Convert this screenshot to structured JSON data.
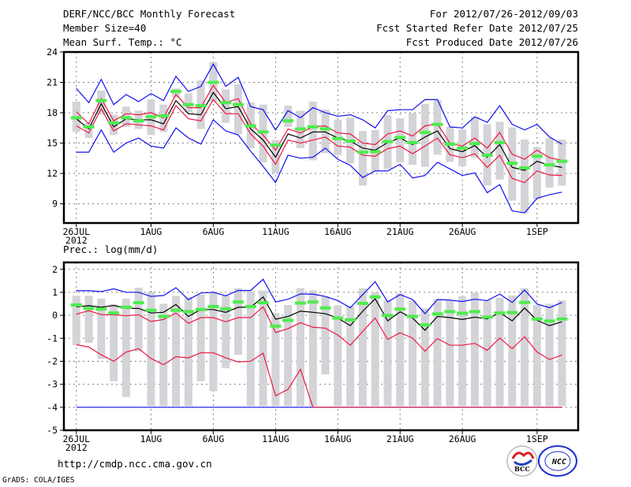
{
  "header": {
    "title": "DERF/NCC/BCC Monthly Forecast",
    "member_size": "Member Size=40",
    "variable": "Mean Surf. Temp.: °C",
    "period": "For 2012/07/26-2012/09/03",
    "fcst_started": "Fcst Started Refer Date 2012/07/25",
    "fcst_produced": "Fcst Produced Date 2012/07/26"
  },
  "footer": {
    "url": "http://cmdp.ncc.cma.gov.cn",
    "credit": "GrADS: COLA/IGES",
    "logo_bcc": "BCC",
    "logo_ncc": "NCC"
  },
  "colors": {
    "bar": "#d3d3d8",
    "green": "#4ded4d",
    "mean": "#000000",
    "red": "#ee1840",
    "blue": "#1010f0",
    "grid": "#808080"
  },
  "chart_data": [
    {
      "type": "line",
      "title": "Mean Surf. Temp.: °C",
      "ylabel": "°C",
      "x_tick_labels": [
        {
          "day": 0,
          "label": "26JUL",
          "sub": "2012"
        },
        {
          "day": 6,
          "label": "1AUG"
        },
        {
          "day": 11,
          "label": "6AUG"
        },
        {
          "day": 16,
          "label": "11AUG"
        },
        {
          "day": 21,
          "label": "16AUG"
        },
        {
          "day": 26,
          "label": "21AUG"
        },
        {
          "day": 31,
          "label": "26AUG"
        },
        {
          "day": 37,
          "label": "1SEP"
        }
      ],
      "y_ticks": [
        24,
        21,
        18,
        15,
        12,
        9
      ],
      "ylim": [
        7.1,
        24
      ],
      "xlim": [
        -1,
        40.3
      ],
      "grid": true,
      "series": {
        "bar_max": [
          19.1,
          17.0,
          20.2,
          17.8,
          18.6,
          18.2,
          19.3,
          18.8,
          20.4,
          19.9,
          21.2,
          23.0,
          20.3,
          20.8,
          19.0,
          18.8,
          15.3,
          18.7,
          18.2,
          19.1,
          18.3,
          17.3,
          17.5,
          16.2,
          16.3,
          17.75,
          17.45,
          17.95,
          18.85,
          19.25,
          16.6,
          16.35,
          17.6,
          16.85,
          17.1,
          16.55,
          15.35,
          14.6,
          15.5,
          15.35
        ],
        "bar_min": [
          16.1,
          15.5,
          17.8,
          15.8,
          16.6,
          16.4,
          15.8,
          16.1,
          19.5,
          18.0,
          16.4,
          19.1,
          17.0,
          15.9,
          14.5,
          13.1,
          12.0,
          16.6,
          14.5,
          13.3,
          14.0,
          13.8,
          13.0,
          10.8,
          12.2,
          12.45,
          13.1,
          12.85,
          12.65,
          13.85,
          13.15,
          12.7,
          13.55,
          10.8,
          11.4,
          9.3,
          8.1,
          9.45,
          10.6,
          10.8
        ],
        "green": [
          17.5,
          16.6,
          19.2,
          17.0,
          17.5,
          17.2,
          17.6,
          17.7,
          20.1,
          18.8,
          18.7,
          21.0,
          19.0,
          18.8,
          16.7,
          16.1,
          14.8,
          17.2,
          16.4,
          16.6,
          16.4,
          15.45,
          15.2,
          14.1,
          14.15,
          15.15,
          15.55,
          15.05,
          16.05,
          16.85,
          14.9,
          14.5,
          14.95,
          13.8,
          15.05,
          13.0,
          12.55,
          13.7,
          12.85,
          13.2
        ],
        "mean": [
          17.4,
          16.4,
          18.9,
          16.6,
          17.4,
          17.3,
          17.3,
          16.9,
          19.2,
          17.9,
          17.8,
          20.0,
          18.4,
          18.6,
          16.4,
          15.3,
          13.6,
          15.9,
          15.5,
          16.1,
          16.1,
          15.5,
          15.2,
          14.5,
          14.3,
          15.05,
          15.5,
          14.85,
          15.6,
          16.2,
          14.45,
          14.15,
          14.75,
          13.6,
          14.85,
          12.6,
          12.3,
          13.2,
          12.8,
          12.6
        ],
        "red_upper": [
          18.1,
          16.9,
          19.4,
          17.2,
          17.9,
          17.8,
          18.0,
          17.5,
          19.8,
          18.5,
          18.5,
          20.7,
          19.0,
          19.4,
          16.9,
          15.8,
          14.3,
          16.4,
          16.0,
          16.6,
          16.7,
          16.0,
          15.9,
          15.0,
          14.85,
          15.9,
          16.2,
          15.7,
          16.7,
          16.9,
          15.0,
          14.7,
          15.5,
          14.5,
          16.05,
          13.9,
          13.4,
          14.3,
          13.55,
          13.3
        ],
        "red_lower": [
          16.7,
          16.0,
          18.4,
          16.2,
          16.9,
          16.8,
          16.7,
          16.3,
          18.7,
          17.4,
          17.2,
          19.3,
          17.9,
          17.9,
          15.9,
          14.7,
          12.9,
          15.3,
          15.0,
          15.3,
          15.6,
          14.7,
          14.6,
          13.8,
          13.7,
          14.45,
          14.7,
          13.95,
          14.7,
          15.5,
          13.85,
          13.55,
          13.95,
          12.6,
          13.8,
          11.5,
          11.1,
          12.25,
          11.85,
          11.8
        ],
        "blue_upper": [
          20.4,
          19.0,
          21.3,
          18.8,
          19.8,
          19.1,
          19.9,
          19.2,
          21.6,
          20.1,
          20.6,
          22.8,
          20.6,
          21.5,
          18.6,
          18.3,
          16.3,
          18.2,
          17.5,
          18.5,
          18.0,
          17.65,
          17.8,
          17.3,
          16.5,
          18.2,
          18.3,
          18.3,
          19.3,
          19.3,
          16.6,
          16.5,
          17.6,
          17.05,
          18.7,
          16.85,
          16.3,
          16.85,
          15.6,
          14.9
        ],
        "blue_lower": [
          14.1,
          14.1,
          16.3,
          14.1,
          15.0,
          15.5,
          14.7,
          14.5,
          16.5,
          15.5,
          14.9,
          17.3,
          16.2,
          15.8,
          14.2,
          12.7,
          11.1,
          13.8,
          13.5,
          13.6,
          14.5,
          13.4,
          12.8,
          11.6,
          12.25,
          12.25,
          12.9,
          11.55,
          11.8,
          13.1,
          12.45,
          11.8,
          12.05,
          10.1,
          10.9,
          8.3,
          8.1,
          9.55,
          9.9,
          10.15
        ]
      }
    },
    {
      "type": "line",
      "title": "Prec.: log(mm/d)",
      "ylabel": "log(mm/d)",
      "x_tick_labels": [
        {
          "day": 0,
          "label": "26JUL",
          "sub": "2012"
        },
        {
          "day": 6,
          "label": "1AUG"
        },
        {
          "day": 11,
          "label": "6AUG"
        },
        {
          "day": 16,
          "label": "11AUG"
        },
        {
          "day": 21,
          "label": "16AUG"
        },
        {
          "day": 26,
          "label": "21AUG"
        },
        {
          "day": 31,
          "label": "26AUG"
        },
        {
          "day": 37,
          "label": "1SEP"
        }
      ],
      "y_ticks": [
        2,
        1,
        0,
        -1,
        -2,
        -3,
        -4,
        -5
      ],
      "ylim": [
        -5,
        2.3
      ],
      "xlim": [
        -1,
        40.3
      ],
      "grid": true,
      "series": {
        "bar_max": [
          0.85,
          0.85,
          0.72,
          0.48,
          0.72,
          1.2,
          1.0,
          0.5,
          0.85,
          0.8,
          0.9,
          1.0,
          0.85,
          1.18,
          1.05,
          1.08,
          0.1,
          0.45,
          1.18,
          1.08,
          0.83,
          0.43,
          0.4,
          1.17,
          1.0,
          0.65,
          0.95,
          0.65,
          0.3,
          0.7,
          0.65,
          0.82,
          0.98,
          0.65,
          0.77,
          0.86,
          1.18,
          0.45,
          0.5,
          0.65
        ],
        "bar_min": [
          -1.3,
          -1.2,
          -1.9,
          -2.87,
          -3.55,
          -1.57,
          -3.95,
          -3.95,
          -3.95,
          -3.95,
          -2.87,
          -3.3,
          -2.3,
          -1.72,
          -3.95,
          -3.95,
          -3.95,
          -3.95,
          -3.95,
          -3.95,
          -2.57,
          -3.95,
          -3.95,
          -3.95,
          -3.95,
          -3.95,
          -3.95,
          -3.95,
          -3.95,
          -3.95,
          -3.95,
          -3.95,
          -3.95,
          -3.95,
          -3.95,
          -3.95,
          -3.95,
          -3.95,
          -3.95,
          -3.95
        ],
        "green": [
          0.45,
          0.3,
          0.27,
          0.1,
          0.35,
          0.55,
          0.22,
          -0.05,
          0.22,
          0.16,
          0.25,
          0.38,
          0.28,
          0.58,
          0.38,
          0.55,
          -0.47,
          -0.22,
          0.53,
          0.58,
          0.32,
          -0.12,
          -0.2,
          0.52,
          0.8,
          -0.01,
          0.27,
          -0.05,
          -0.42,
          0.06,
          0.16,
          0.09,
          0.16,
          -0.08,
          0.1,
          0.12,
          0.56,
          -0.16,
          -0.25,
          -0.16
        ],
        "mean": [
          0.37,
          0.42,
          0.35,
          0.43,
          0.3,
          0.3,
          0.1,
          0.13,
          0.47,
          -0.05,
          0.25,
          0.25,
          0.13,
          0.35,
          0.35,
          0.8,
          -0.17,
          -0.05,
          0.18,
          0.13,
          0.07,
          -0.12,
          -0.45,
          0.18,
          0.72,
          -0.24,
          0.15,
          -0.12,
          -0.65,
          -0.05,
          -0.1,
          -0.18,
          -0.08,
          -0.16,
          0.12,
          -0.24,
          0.32,
          -0.22,
          -0.45,
          -0.28
        ],
        "red_upper": [
          0.05,
          0.2,
          0.03,
          0.02,
          -0.02,
          0.02,
          -0.27,
          -0.18,
          0.1,
          -0.35,
          -0.1,
          -0.1,
          -0.28,
          -0.1,
          -0.1,
          0.37,
          -0.75,
          -0.58,
          -0.32,
          -0.52,
          -0.56,
          -0.86,
          -1.3,
          -0.7,
          -0.12,
          -1.05,
          -0.76,
          -0.99,
          -1.56,
          -1.01,
          -1.3,
          -1.3,
          -1.22,
          -1.52,
          -0.99,
          -1.45,
          -0.93,
          -1.6,
          -1.92,
          -1.73
        ],
        "red_lower": [
          -1.28,
          -1.38,
          -1.72,
          -2.0,
          -1.6,
          -1.45,
          -1.88,
          -2.15,
          -1.8,
          -1.85,
          -1.63,
          -1.63,
          -1.85,
          -2.03,
          -2.0,
          -1.65,
          -3.5,
          -3.22,
          -2.35,
          -4,
          -4,
          -4,
          -4,
          -4,
          -4,
          -4,
          -4,
          -4,
          -4,
          -4,
          -4,
          -4,
          -4,
          -4,
          -4,
          -4,
          -4,
          -4,
          -4,
          -4
        ],
        "blue_upper": [
          1.07,
          1.07,
          1.03,
          1.15,
          1.0,
          1.0,
          0.82,
          0.86,
          1.2,
          0.68,
          0.97,
          1.0,
          0.85,
          1.08,
          1.08,
          1.57,
          0.58,
          0.7,
          0.93,
          0.92,
          0.82,
          0.64,
          0.33,
          0.9,
          1.46,
          0.58,
          0.9,
          0.69,
          0.07,
          0.69,
          0.66,
          0.6,
          0.7,
          0.64,
          0.92,
          0.56,
          1.1,
          0.49,
          0.33,
          0.56
        ],
        "blue_lower": [
          -4,
          -4,
          -4,
          -4,
          -4,
          -4,
          -4,
          -4,
          -4,
          -4,
          -4,
          -4,
          -4,
          -4,
          -4,
          -4,
          -4,
          -4,
          -4,
          -4,
          -4,
          -4,
          -4,
          -4,
          -4,
          -4,
          -4,
          -4,
          -4,
          -4,
          -4,
          -4,
          -4,
          -4,
          -4,
          -4,
          -4,
          -4,
          -4,
          -4
        ]
      }
    }
  ]
}
